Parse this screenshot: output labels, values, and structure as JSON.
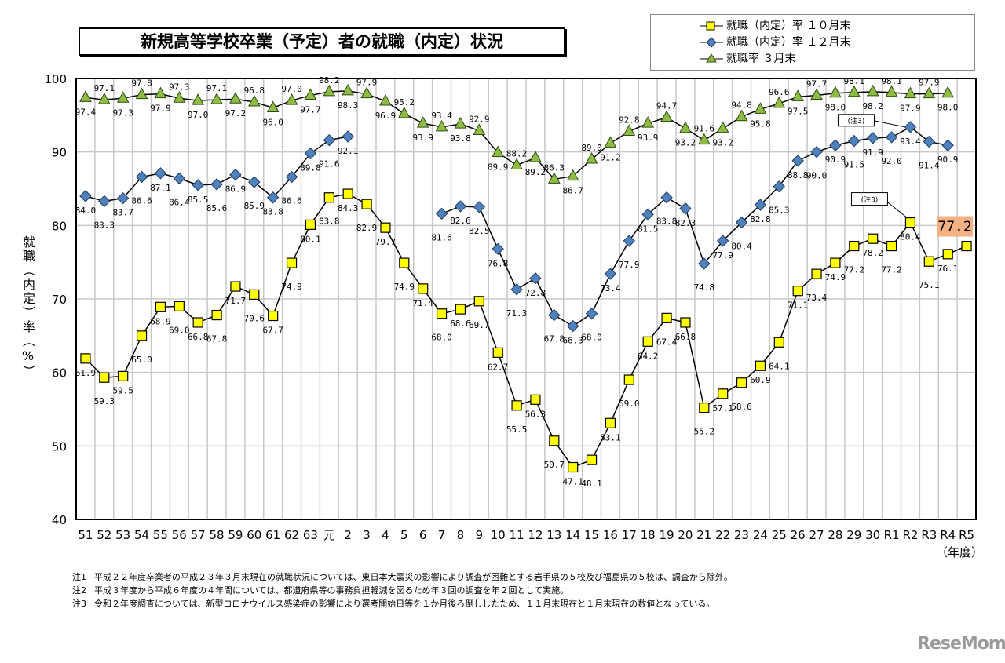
{
  "chart_data": {
    "type": "line",
    "title": "新規高等学校卒業（予定）者の就職（内定）状況",
    "ylabel": "就職（内定）率（%）",
    "xlabel": "（年度）",
    "ylim": [
      40,
      100
    ],
    "yticks": [
      "40",
      "50",
      "60",
      "70",
      "80",
      "90",
      "100"
    ],
    "grid": true,
    "legend_position": "top-right",
    "categories": [
      "51",
      "52",
      "53",
      "54",
      "55",
      "56",
      "57",
      "58",
      "59",
      "60",
      "61",
      "62",
      "63",
      "元",
      "2",
      "3",
      "4",
      "5",
      "6",
      "7",
      "8",
      "9",
      "10",
      "11",
      "12",
      "13",
      "14",
      "15",
      "16",
      "17",
      "18",
      "19",
      "20",
      "21",
      "22",
      "23",
      "24",
      "25",
      "26",
      "27",
      "28",
      "29",
      "30",
      "R1",
      "R2",
      "R3",
      "R4",
      "R5"
    ],
    "series": [
      {
        "name": "就職（内定）率 １０月末",
        "marker": "square",
        "color": "#ffff00",
        "values": [
          61.9,
          59.3,
          59.5,
          65.0,
          68.9,
          69.0,
          66.8,
          67.8,
          71.7,
          70.6,
          67.7,
          74.9,
          80.1,
          83.8,
          84.3,
          82.9,
          79.7,
          74.9,
          71.4,
          68.0,
          68.6,
          69.7,
          62.7,
          55.5,
          56.3,
          50.7,
          47.1,
          48.1,
          53.1,
          59.0,
          64.2,
          67.4,
          66.8,
          55.2,
          57.1,
          58.6,
          60.9,
          64.1,
          71.1,
          73.4,
          74.9,
          77.2,
          78.2,
          77.2,
          80.4,
          75.1,
          76.1,
          77.2
        ]
      },
      {
        "name": "就職（内定）率 １２月末",
        "marker": "diamond",
        "color": "#4f81bd",
        "values": [
          84.0,
          83.3,
          83.7,
          86.6,
          87.1,
          86.4,
          85.5,
          85.6,
          86.9,
          85.9,
          83.8,
          86.6,
          89.8,
          91.6,
          92.1,
          null,
          null,
          null,
          null,
          81.6,
          82.6,
          82.5,
          76.8,
          71.3,
          72.8,
          67.8,
          66.3,
          68.0,
          73.4,
          77.9,
          81.5,
          83.8,
          82.3,
          74.8,
          77.9,
          80.4,
          82.8,
          85.3,
          88.8,
          90.0,
          90.9,
          91.5,
          91.9,
          92.0,
          93.4,
          91.4,
          90.9,
          null
        ]
      },
      {
        "name": "就職率 ３月末",
        "marker": "triangle",
        "color": "#8fbc45",
        "values": [
          97.4,
          97.1,
          97.3,
          97.8,
          97.9,
          97.3,
          97.0,
          97.1,
          97.2,
          96.8,
          96.0,
          97.0,
          97.7,
          98.2,
          98.3,
          97.9,
          96.9,
          95.2,
          93.9,
          93.4,
          93.8,
          92.9,
          89.9,
          88.2,
          89.2,
          86.3,
          86.7,
          89.0,
          91.2,
          92.8,
          93.9,
          94.7,
          93.2,
          91.6,
          93.2,
          94.8,
          95.8,
          96.6,
          97.5,
          97.7,
          98.0,
          98.1,
          98.2,
          98.1,
          97.9,
          97.9,
          98.0,
          null
        ]
      }
    ],
    "annotations": [
      {
        "text": "(注3)",
        "series": 1,
        "category": "R2"
      },
      {
        "text": "(注3)",
        "series": 0,
        "category": "R2"
      },
      {
        "text": "77.2",
        "series": 0,
        "category": "R5",
        "highlight_color": "#f4b183"
      }
    ],
    "notes": [
      {
        "label": "注1",
        "text": "平成２２年度卒業者の平成２３年３月末現在の就職状況については、東日本大震災の影響により調査が困難とする岩手県の５校及び福島県の５校は、調査から除外。"
      },
      {
        "label": "注2",
        "text": "平成３年度から平成６年度の４年間については、都道府県等の事務負担軽減を図るため年３回の調査を年２回として実施。"
      },
      {
        "label": "注3",
        "text": "令和２年度調査については、新型コロナウイルス感染症の影響により選考開始日等を１か月後ろ倒ししたため、１１月末現在と１月末現在の数値となっている。"
      }
    ],
    "ylabel_chars": [
      "就",
      "職",
      "（",
      "内",
      "定",
      "）",
      "率",
      "（",
      "%",
      "）"
    ]
  },
  "logo": "ReseMom"
}
